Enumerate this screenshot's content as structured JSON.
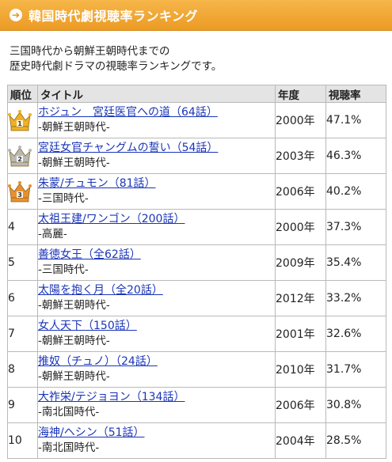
{
  "header": {
    "icon": "circle-arrow-right-icon",
    "title": "韓国時代劇視聴率ランキング",
    "color": "#ec9b24"
  },
  "intro": {
    "line1": "三国時代から朝鮮王朝時代までの",
    "line2": "歴史時代劇ドラマの視聴率ランキングです。"
  },
  "table": {
    "headers": {
      "rank": "順位",
      "title": "タイトル",
      "year": "年度",
      "rating": "視聴率"
    },
    "rows": [
      {
        "rank": "1",
        "crown": "gold",
        "title": "ホジュン　宮廷医官への道（64話）",
        "era": "-朝鮮王朝時代-",
        "year": "2000年",
        "rating": "47.1%"
      },
      {
        "rank": "2",
        "crown": "silver",
        "title": "宮廷女官チャングムの誓い（54話）",
        "era": "-朝鮮王朝時代-",
        "year": "2003年",
        "rating": "46.3%"
      },
      {
        "rank": "3",
        "crown": "bronze",
        "title": "朱蒙/チュモン（81話）",
        "era": "-三国時代-",
        "year": "2006年",
        "rating": "40.2%"
      },
      {
        "rank": "4",
        "crown": "",
        "title": "太祖王建/ワンゴン（200話）",
        "era": "-高麗-",
        "year": "2000年",
        "rating": "37.3%"
      },
      {
        "rank": "5",
        "crown": "",
        "title": "善徳女王（全62話）",
        "era": "-三国時代-",
        "year": "2009年",
        "rating": "35.4%"
      },
      {
        "rank": "6",
        "crown": "",
        "title": "太陽を抱く月（全20話）",
        "era": "-朝鮮王朝時代-",
        "year": "2012年",
        "rating": "33.2%"
      },
      {
        "rank": "7",
        "crown": "",
        "title": "女人天下（150話）",
        "era": "-朝鮮王朝時代-",
        "year": "2001年",
        "rating": "32.6%"
      },
      {
        "rank": "8",
        "crown": "",
        "title": "推奴（チュノ）（24話）",
        "era": "-朝鮮王朝時代-",
        "year": "2010年",
        "rating": "31.7%"
      },
      {
        "rank": "9",
        "crown": "",
        "title": "大祚栄/テジョヨン（134話）",
        "era": "-南北国時代-",
        "year": "2006年",
        "rating": "30.8%"
      },
      {
        "rank": "10",
        "crown": "",
        "title": "海神/ヘシン（51話）",
        "era": "-南北国時代-",
        "year": "2004年",
        "rating": "28.5%"
      }
    ]
  },
  "colors": {
    "link": "#1a35b8",
    "gold": "#f0b020",
    "silver": "#b8b8b8",
    "bronze": "#e8902e"
  }
}
